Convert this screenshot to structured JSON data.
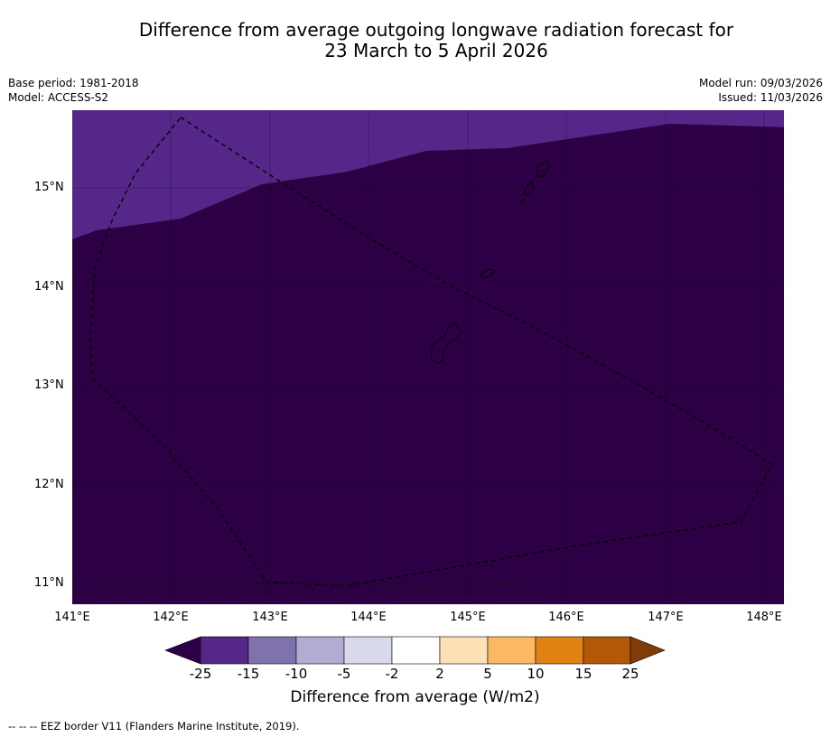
{
  "title": {
    "line1": "Difference from average outgoing longwave radiation forecast for",
    "line2": "23 March to 5 April 2026"
  },
  "meta": {
    "base_period": "Base period: 1981-2018",
    "model": "Model: ACCESS-S2",
    "model_run": "Model run: 09/03/2026",
    "issued": "Issued: 11/03/2026"
  },
  "map": {
    "lat_labels": [
      "15°N",
      "14°N",
      "13°N",
      "12°N",
      "11°N"
    ],
    "lon_labels": [
      "141°E",
      "142°E",
      "143°E",
      "144°E",
      "145°E",
      "146°E",
      "147°E",
      "148°E"
    ],
    "copyright": "© Commonwealth of Australia 2026, Bureau of Meteorology, supported by COSPPac",
    "colors": {
      "below_minus25": "#2d0045",
      "minus25_to_minus15": "#542788"
    }
  },
  "colorbar": {
    "labels": [
      "-25",
      "-15",
      "-10",
      "-5",
      "-2",
      "2",
      "5",
      "10",
      "15",
      "25"
    ],
    "colors": [
      "#2d0045",
      "#542788",
      "#8073ac",
      "#b2abd2",
      "#d8daeb",
      "#ffffff",
      "#fee0b6",
      "#fdb863",
      "#e08214",
      "#b35806",
      "#7f3b08"
    ],
    "title": "Difference from average (W/m2)"
  },
  "footnote": "--  --  -- EEZ border V11 (Flanders Marine Institute, 2019)."
}
